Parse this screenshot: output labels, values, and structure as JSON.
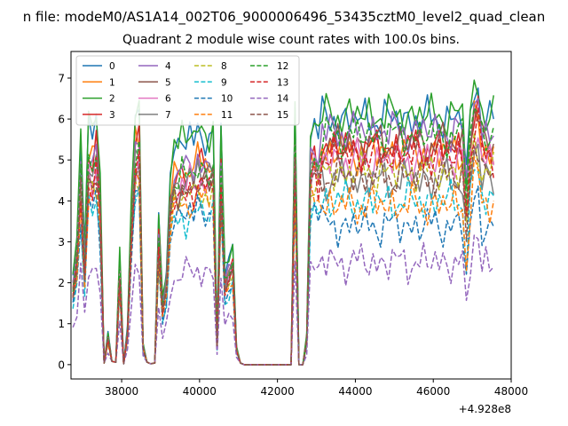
{
  "chart_data": {
    "type": "line",
    "suptitle": "n file: modeM0/AS1A14_002T06_9000006496_53435cztM0_level2_quad_clean",
    "title": "Quadrant 2 module wise count rates with 100.0s bins.",
    "xlabel": "",
    "ylabel": "",
    "x_offset_text": "+4.928e8",
    "xlim": [
      36700,
      48000
    ],
    "ylim": [
      -0.35,
      7.65
    ],
    "x_ticks": [
      38000,
      40000,
      42000,
      44000,
      46000,
      48000
    ],
    "x_tick_labels": [
      "38000",
      "40000",
      "42000",
      "44000",
      "46000",
      "48000"
    ],
    "y_ticks": [
      0,
      1,
      2,
      3,
      4,
      5,
      6,
      7
    ],
    "y_tick_labels": [
      "0",
      "1",
      "2",
      "3",
      "4",
      "5",
      "6",
      "7"
    ],
    "grid": false,
    "legend_position": "top-left",
    "legend_columns": 4,
    "x_start": 36750,
    "x_step": 100,
    "n_points": 109,
    "series": [
      {
        "name": "0",
        "color": "#1f77b4",
        "dash": "solid"
      },
      {
        "name": "1",
        "color": "#ff7f0e",
        "dash": "solid"
      },
      {
        "name": "2",
        "color": "#2ca02c",
        "dash": "solid"
      },
      {
        "name": "3",
        "color": "#d62728",
        "dash": "solid"
      },
      {
        "name": "4",
        "color": "#9467bd",
        "dash": "solid"
      },
      {
        "name": "5",
        "color": "#8c564b",
        "dash": "solid"
      },
      {
        "name": "6",
        "color": "#e377c2",
        "dash": "solid"
      },
      {
        "name": "7",
        "color": "#7f7f7f",
        "dash": "solid"
      },
      {
        "name": "8",
        "color": "#bcbd22",
        "dash": "dashed"
      },
      {
        "name": "9",
        "color": "#17becf",
        "dash": "dashed"
      },
      {
        "name": "10",
        "color": "#1f77b4",
        "dash": "dashed"
      },
      {
        "name": "11",
        "color": "#ff7f0e",
        "dash": "dashed"
      },
      {
        "name": "12",
        "color": "#2ca02c",
        "dash": "dashed"
      },
      {
        "name": "13",
        "color": "#d62728",
        "dash": "dashed"
      },
      {
        "name": "14",
        "color": "#9467bd",
        "dash": "dashed"
      },
      {
        "name": "15",
        "color": "#8c564b",
        "dash": "dashed"
      }
    ]
  }
}
